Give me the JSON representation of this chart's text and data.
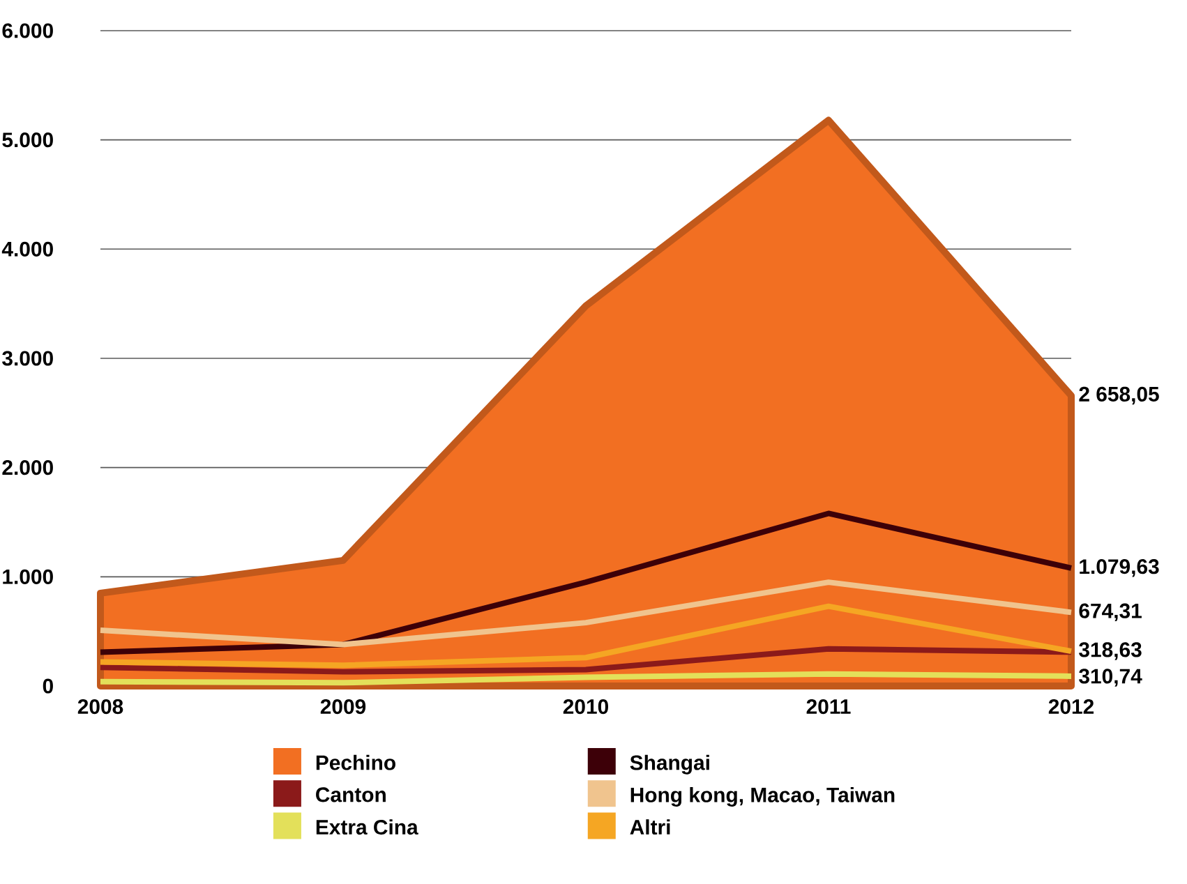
{
  "chart_data": {
    "type": "line",
    "categories": [
      "2008",
      "2009",
      "2010",
      "2011",
      "2012"
    ],
    "series": [
      {
        "name": "Pechino",
        "type": "area",
        "color": "#f26f22",
        "values": [
          850,
          1150,
          3480,
          5180,
          2658.05
        ],
        "value_labels": [
          null,
          null,
          null,
          null,
          "2 658,05"
        ]
      },
      {
        "name": "Shangai",
        "color": "#3d0008",
        "values": [
          310,
          380,
          950,
          1580,
          1079.63
        ],
        "value_labels": [
          null,
          null,
          null,
          null,
          "1.079,63"
        ]
      },
      {
        "name": "Canton",
        "color": "#8b1a1a",
        "values": [
          170,
          130,
          150,
          340,
          310.74
        ],
        "value_labels": [
          null,
          null,
          null,
          null,
          "310,74"
        ]
      },
      {
        "name": "Hong kong, Macao, Taiwan",
        "color": "#f0c48e",
        "values": [
          510,
          380,
          580,
          950,
          674.31
        ],
        "value_labels": [
          null,
          null,
          null,
          null,
          "674,31"
        ]
      },
      {
        "name": "Extra Cina",
        "color": "#e3e05a",
        "values": [
          40,
          30,
          80,
          110,
          90
        ]
      },
      {
        "name": "Altri",
        "color": "#f5a623",
        "values": [
          220,
          190,
          260,
          730,
          318.63
        ],
        "value_labels": [
          null,
          null,
          null,
          null,
          "318,63"
        ]
      }
    ],
    "ylim": [
      0,
      6000
    ],
    "yticks": [
      {
        "value": 0,
        "label": "0"
      },
      {
        "value": 1000,
        "label": "1.000"
      },
      {
        "value": 2000,
        "label": "2.000"
      },
      {
        "value": 3000,
        "label": "3.000"
      },
      {
        "value": 4000,
        "label": "4.000"
      },
      {
        "value": 5000,
        "label": "5.000"
      },
      {
        "value": 6000,
        "label": "6.000"
      }
    ],
    "grid": "y",
    "legend": "bottom"
  }
}
